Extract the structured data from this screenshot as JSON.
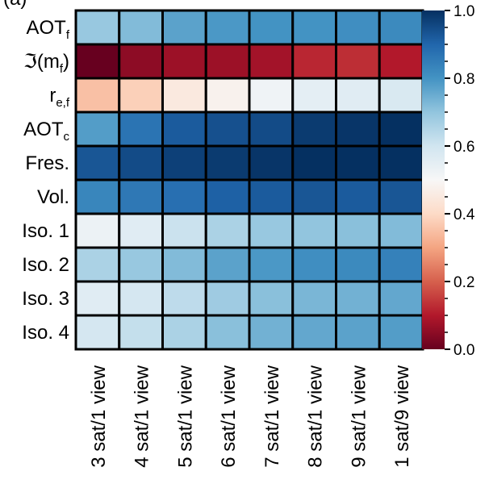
{
  "chart_data": {
    "type": "heatmap",
    "title_fragment": "(a)",
    "rows": [
      {
        "base": "AOT",
        "sub": "f",
        "style": "sub"
      },
      {
        "base": "ℑ(m",
        "sub": "f",
        "tail": ")",
        "style": "sub"
      },
      {
        "base": "r",
        "sub": "e,f",
        "style": "sub"
      },
      {
        "base": "AOT",
        "sub": "c",
        "style": "sub"
      },
      {
        "base": "Fres.",
        "style": "plain"
      },
      {
        "base": "Vol.",
        "style": "plain"
      },
      {
        "base": "Iso. 1",
        "style": "plain"
      },
      {
        "base": "Iso. 2",
        "style": "plain"
      },
      {
        "base": "Iso. 3",
        "style": "plain"
      },
      {
        "base": "Iso. 4",
        "style": "plain"
      }
    ],
    "columns": [
      "3 sat/1 view",
      "4 sat/1 view",
      "5 sat/1 view",
      "6 sat/1 view",
      "7 sat/1 view",
      "8 sat/1 view",
      "9 sat/1 view",
      "1 sat/9 view"
    ],
    "values": [
      [
        0.69,
        0.72,
        0.77,
        0.79,
        0.8,
        0.8,
        0.81,
        0.82
      ],
      [
        0.0,
        0.05,
        0.07,
        0.07,
        0.08,
        0.12,
        0.13,
        0.1
      ],
      [
        0.35,
        0.38,
        0.45,
        0.48,
        0.52,
        0.55,
        0.56,
        0.58
      ],
      [
        0.78,
        0.87,
        0.92,
        0.94,
        0.95,
        0.98,
        0.99,
        1.0
      ],
      [
        0.93,
        0.95,
        0.97,
        0.98,
        0.99,
        1.0,
        1.0,
        1.0
      ],
      [
        0.83,
        0.86,
        0.88,
        0.91,
        0.92,
        0.93,
        0.92,
        0.93
      ],
      [
        0.53,
        0.56,
        0.61,
        0.66,
        0.69,
        0.7,
        0.71,
        0.72
      ],
      [
        0.66,
        0.69,
        0.72,
        0.77,
        0.79,
        0.81,
        0.82,
        0.84
      ],
      [
        0.56,
        0.59,
        0.63,
        0.68,
        0.71,
        0.73,
        0.74,
        0.76
      ],
      [
        0.59,
        0.62,
        0.66,
        0.71,
        0.74,
        0.76,
        0.77,
        0.78
      ]
    ],
    "colorbar": {
      "min": 0.0,
      "max": 1.0,
      "ticks": [
        "0.0",
        "0.2",
        "0.4",
        "0.6",
        "0.8",
        "1.0"
      ],
      "colormap": "RdBu",
      "stops": [
        "#67001f",
        "#b2182b",
        "#d6604d",
        "#f4a582",
        "#fddbc7",
        "#f7f7f7",
        "#d1e5f0",
        "#92c5de",
        "#4393c3",
        "#2166ac",
        "#053061"
      ]
    }
  }
}
